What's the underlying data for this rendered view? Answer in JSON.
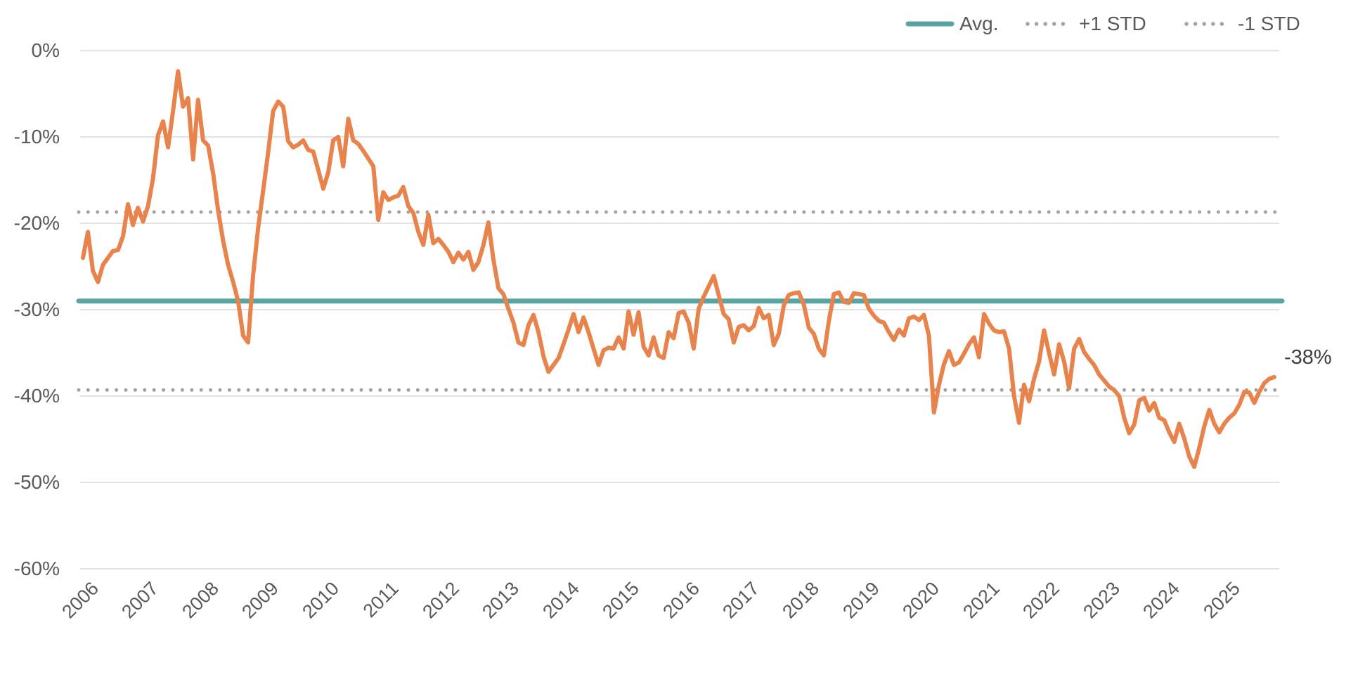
{
  "legend": {
    "items": [
      {
        "label": "Avg.",
        "swatch": "solid-line",
        "color": "#57a5a3"
      },
      {
        "label": "+1 STD",
        "swatch": "dotted-line",
        "color": "#a6a19a"
      },
      {
        "label": "-1 STD",
        "swatch": "dotted-line",
        "color": "#a6a19a"
      }
    ]
  },
  "colors": {
    "background": "#ffffff",
    "series_orange": "#e8834c",
    "avg_teal": "#57a5a3",
    "std_dotted_gray": "#a6a19a",
    "gridline": "#e2e2e2",
    "axis_text": "#595959",
    "end_label_text": "#3f3f3f"
  },
  "chart_data": {
    "type": "line",
    "title": "",
    "grid": "horizontal",
    "legend_position": "top-right",
    "ylim": [
      -60,
      0
    ],
    "y_tick_labels": [
      "0%",
      "-10%",
      "-20%",
      "-30%",
      "-40%",
      "-50%",
      "-60%"
    ],
    "y_tick_values": [
      0,
      -10,
      -20,
      -30,
      -40,
      -50,
      -60
    ],
    "x_tick_labels": [
      "2006",
      "2007",
      "2008",
      "2009",
      "2010",
      "2011",
      "2012",
      "2013",
      "2014",
      "2015",
      "2016",
      "2017",
      "2018",
      "2019",
      "2020",
      "2021",
      "2022",
      "2023",
      "2024",
      "2025"
    ],
    "end_label": "-38%",
    "reference_lines": [
      {
        "name": "avg",
        "label": "Avg.",
        "value": -29.0,
        "style": "solid",
        "color": "#57a5a3"
      },
      {
        "name": "plus1-std",
        "label": "+1 STD",
        "value": -18.7,
        "style": "dotted",
        "color": "#a6a19a"
      },
      {
        "name": "minus1-std",
        "label": "-1 STD",
        "value": -39.3,
        "style": "dotted",
        "color": "#a6a19a"
      }
    ],
    "series": [
      {
        "name": "monthly-value-pct",
        "color": "#e8834c",
        "frequency": "monthly",
        "start": "2006-01",
        "end": "2025-11",
        "values": [
          -24.0,
          -21.0,
          -25.5,
          -26.8,
          -24.8,
          -24.0,
          -23.2,
          -23.1,
          -21.5,
          -17.8,
          -20.2,
          -18.2,
          -19.8,
          -18.0,
          -14.8,
          -9.8,
          -8.2,
          -11.2,
          -7.0,
          -2.4,
          -6.5,
          -5.5,
          -12.6,
          -5.7,
          -10.4,
          -11.0,
          -14.2,
          -18.5,
          -22.0,
          -24.8,
          -26.8,
          -29.0,
          -33.0,
          -33.8,
          -26.0,
          -20.5,
          -16.2,
          -11.8,
          -7.0,
          -5.9,
          -6.5,
          -10.5,
          -11.2,
          -10.9,
          -10.4,
          -11.5,
          -11.7,
          -13.8,
          -16.0,
          -14.1,
          -10.4,
          -10.0,
          -13.4,
          -7.9,
          -10.4,
          -10.8,
          -11.6,
          -12.5,
          -13.4,
          -19.6,
          -16.4,
          -17.3,
          -17.0,
          -16.8,
          -15.8,
          -18.0,
          -18.8,
          -21.0,
          -22.5,
          -19.0,
          -22.3,
          -21.8,
          -22.5,
          -23.3,
          -24.5,
          -23.4,
          -24.2,
          -23.3,
          -25.4,
          -24.5,
          -22.5,
          -19.9,
          -24.2,
          -27.5,
          -28.2,
          -29.9,
          -31.5,
          -33.8,
          -34.1,
          -31.8,
          -30.6,
          -32.6,
          -35.4,
          -37.2,
          -36.4,
          -35.6,
          -34.0,
          -32.3,
          -30.5,
          -32.6,
          -30.9,
          -32.6,
          -34.5,
          -36.4,
          -34.7,
          -34.4,
          -34.5,
          -33.2,
          -34.5,
          -30.2,
          -32.9,
          -30.3,
          -34.3,
          -35.3,
          -33.2,
          -35.3,
          -35.6,
          -32.6,
          -33.3,
          -30.4,
          -30.2,
          -31.5,
          -34.5,
          -29.9,
          -28.5,
          -27.3,
          -26.1,
          -28.3,
          -30.5,
          -31.1,
          -33.8,
          -32.0,
          -31.8,
          -32.4,
          -31.9,
          -29.8,
          -31.0,
          -30.6,
          -34.1,
          -32.8,
          -29.5,
          -28.3,
          -28.1,
          -28.0,
          -29.4,
          -32.1,
          -32.8,
          -34.5,
          -35.3,
          -31.3,
          -28.2,
          -28.0,
          -29.1,
          -29.2,
          -28.1,
          -28.2,
          -28.3,
          -29.9,
          -30.7,
          -31.3,
          -31.5,
          -32.6,
          -33.5,
          -32.3,
          -33.0,
          -31.0,
          -30.8,
          -31.2,
          -30.6,
          -33.0,
          -41.9,
          -38.7,
          -36.3,
          -34.8,
          -36.4,
          -36.1,
          -35.1,
          -34.0,
          -33.2,
          -35.5,
          -30.5,
          -31.6,
          -32.4,
          -32.6,
          -32.5,
          -34.5,
          -40.0,
          -43.1,
          -38.7,
          -40.6,
          -38.0,
          -36.0,
          -32.4,
          -35.0,
          -37.5,
          -34.0,
          -36.0,
          -39.1,
          -34.5,
          -33.4,
          -34.9,
          -35.7,
          -36.4,
          -37.5,
          -38.2,
          -38.9,
          -39.3,
          -40.0,
          -42.5,
          -44.3,
          -43.3,
          -40.5,
          -40.2,
          -41.7,
          -40.8,
          -42.5,
          -42.8,
          -44.2,
          -45.3,
          -43.2,
          -44.9,
          -47.0,
          -48.2,
          -46.0,
          -43.5,
          -41.6,
          -43.2,
          -44.2,
          -43.2,
          -42.5,
          -42.0,
          -41.0,
          -39.5,
          -39.6,
          -40.8,
          -39.5,
          -38.5,
          -38.0,
          -37.8
        ]
      }
    ]
  }
}
